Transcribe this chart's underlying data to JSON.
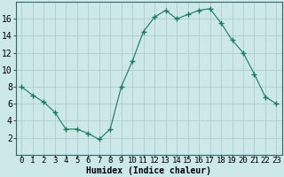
{
  "x": [
    0,
    1,
    2,
    3,
    4,
    5,
    6,
    7,
    8,
    9,
    10,
    11,
    12,
    13,
    14,
    15,
    16,
    17,
    18,
    19,
    20,
    21,
    22,
    23
  ],
  "y": [
    8,
    7,
    6.2,
    5,
    3,
    3,
    2.5,
    1.8,
    3,
    8,
    11,
    14.5,
    16.2,
    17,
    16,
    16.5,
    17,
    17.2,
    15.5,
    13.5,
    12,
    9.5,
    6.8,
    6
  ],
  "line_color": "#1a7a5e",
  "marker": "+",
  "marker_size": 4,
  "bg_color": "#cce8e8",
  "grid_color": "#b0cccc",
  "xlabel": "Humidex (Indice chaleur)",
  "ylim": [
    0,
    18
  ],
  "xlim": [
    -0.5,
    23.5
  ],
  "yticks": [
    2,
    4,
    6,
    8,
    10,
    12,
    14,
    16
  ],
  "xticks": [
    0,
    1,
    2,
    3,
    4,
    5,
    6,
    7,
    8,
    9,
    10,
    11,
    12,
    13,
    14,
    15,
    16,
    17,
    18,
    19,
    20,
    21,
    22,
    23
  ],
  "xlabel_fontsize": 7,
  "tick_fontsize": 6.5,
  "ytick_fontsize": 7,
  "figwidth": 3.2,
  "figheight": 2.0,
  "dpi": 100
}
